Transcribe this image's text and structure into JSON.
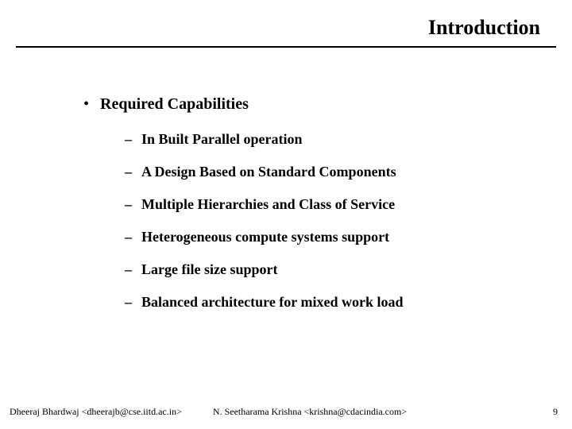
{
  "title": "Introduction",
  "main_bullet": "Required Capabilities",
  "sub_bullets": [
    "In Built Parallel operation",
    "A Design Based on Standard Components",
    "Multiple Hierarchies and Class of Service",
    "Heterogeneous compute systems support",
    "Large file size support",
    "Balanced architecture for mixed work load"
  ],
  "footer": {
    "left": "Dheeraj Bhardwaj <dheerajb@cse.iitd.ac.in>",
    "center": "N. Seetharama Krishna <krishna@cdacindia.com>",
    "page": "9"
  },
  "style": {
    "title_fontsize": 26,
    "bullet_fontsize": 20,
    "sub_fontsize": 18,
    "footer_fontsize": 12,
    "text_color": "#000000",
    "background_color": "#ffffff",
    "rule_color": "#000000"
  }
}
